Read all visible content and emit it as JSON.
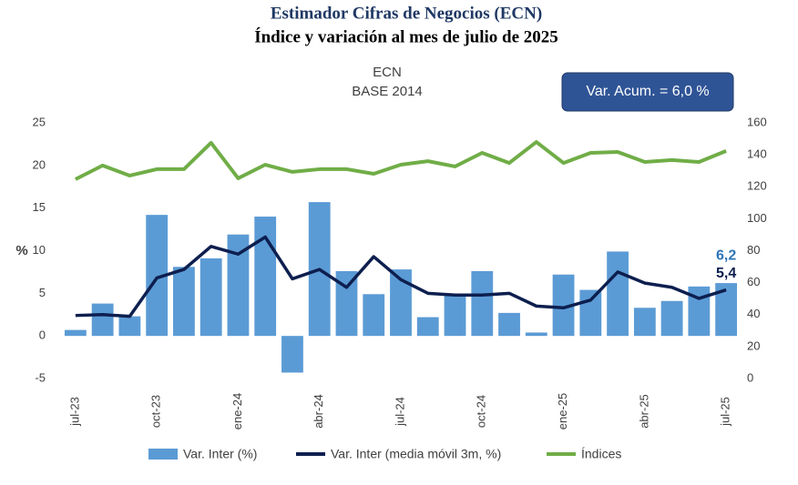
{
  "chart_data": {
    "type": "combo",
    "title": "Estimador Cifras de Negocios (ECN)",
    "subtitle": "Índice y variación al mes de julio de 2025",
    "chart_title": "ECN",
    "chart_subtitle": "BASE 2014",
    "annotation": "Var. Acum. = 6,0 %",
    "y_label": "%",
    "categories": [
      "jul-23",
      null,
      null,
      "oct-23",
      null,
      null,
      "ene-24",
      null,
      null,
      "abr-24",
      null,
      null,
      "jul-24",
      null,
      null,
      "oct-24",
      null,
      null,
      "ene-25",
      null,
      null,
      "abr-25",
      null,
      null,
      "jul-25"
    ],
    "ylim": [
      -5,
      25
    ],
    "yticks": [
      -5,
      0,
      5,
      10,
      15,
      20,
      25
    ],
    "y2lim": [
      0,
      160
    ],
    "y2ticks": [
      0,
      20,
      40,
      60,
      80,
      100,
      120,
      140,
      160
    ],
    "series": [
      {
        "name": "Var. Inter (%)",
        "kind": "bar",
        "color": "#5b9bd5",
        "values": [
          0.7,
          3.8,
          2.3,
          14.2,
          8.1,
          9.1,
          11.9,
          14.0,
          -4.3,
          15.7,
          7.6,
          4.9,
          7.8,
          2.2,
          4.8,
          7.6,
          2.7,
          0.4,
          7.2,
          5.4,
          9.9,
          3.3,
          4.1,
          5.8,
          6.2
        ],
        "value_labels": [
          null,
          null,
          null,
          null,
          null,
          null,
          null,
          null,
          null,
          null,
          null,
          null,
          null,
          null,
          null,
          null,
          null,
          null,
          null,
          null,
          null,
          null,
          null,
          null,
          "6,2"
        ],
        "label_color": "#2e75b6"
      },
      {
        "name": "Var. Inter (media móvil 3m, %)",
        "kind": "line",
        "color": "#0d1f4f",
        "values": [
          2.4,
          2.5,
          2.3,
          6.8,
          7.8,
          10.5,
          9.6,
          11.6,
          6.7,
          7.8,
          5.7,
          9.3,
          6.6,
          5.0,
          4.8,
          4.8,
          5.0,
          3.5,
          3.3,
          4.2,
          7.5,
          6.2,
          5.7,
          4.4,
          5.4
        ],
        "value_labels": [
          null,
          null,
          null,
          null,
          null,
          null,
          null,
          null,
          null,
          null,
          null,
          null,
          null,
          null,
          null,
          null,
          null,
          null,
          null,
          null,
          null,
          null,
          null,
          null,
          "5,4"
        ],
        "label_color": "#0d1f4f"
      },
      {
        "name": "Índices",
        "kind": "line",
        "axis": "y2",
        "color": "#70ad47",
        "values": [
          124.7,
          133.3,
          127,
          131,
          131,
          147.5,
          125.3,
          133.8,
          129.3,
          131,
          131,
          128.1,
          133.8,
          136,
          132.7,
          141.2,
          134.9,
          148,
          134.9,
          141.2,
          141.8,
          135.5,
          136.7,
          135.5,
          142.4
        ]
      }
    ]
  }
}
